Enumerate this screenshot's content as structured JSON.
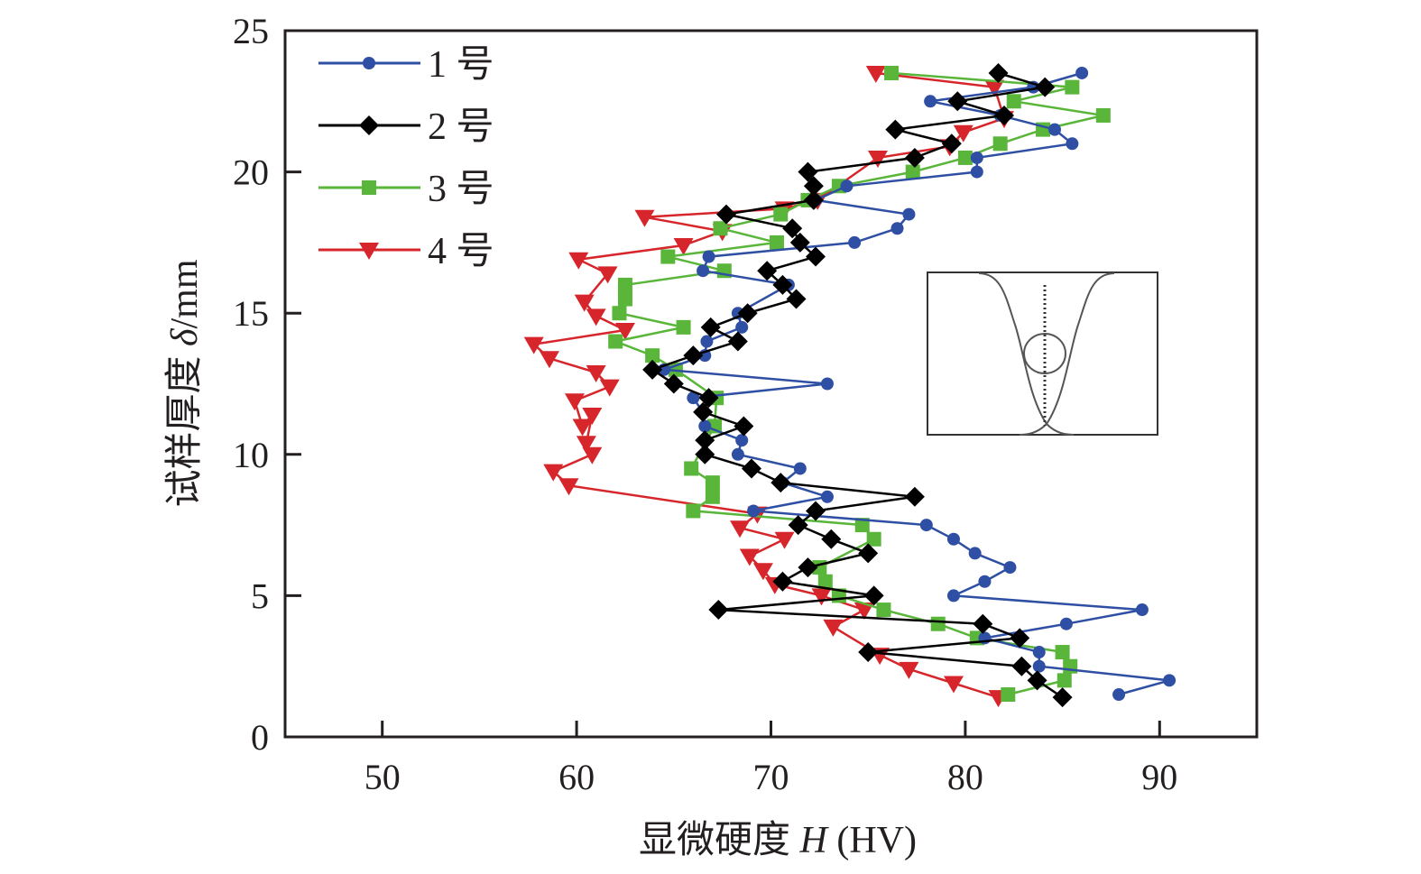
{
  "chart_data": {
    "type": "line",
    "title": "",
    "xlabel": "显微硬度 H (HV)",
    "xlabel_parts": {
      "prefix": "显微硬度 ",
      "italic": "H",
      "suffix": " (HV)"
    },
    "ylabel": "试样厚度 δ/mm",
    "ylabel_parts": {
      "prefix": "试样厚度 ",
      "italic": "δ",
      "suffix": "/mm"
    },
    "xlim": [
      45,
      95
    ],
    "ylim": [
      0,
      25
    ],
    "xticks": [
      50,
      60,
      70,
      80,
      90
    ],
    "yticks": [
      0,
      5,
      10,
      15,
      20,
      25
    ],
    "grid": false,
    "legend_position": "top-left",
    "series": [
      {
        "name": "1 号",
        "color": "#2e4fa3",
        "marker": "circle",
        "points": [
          [
            87.9,
            1.5
          ],
          [
            90.5,
            2.0
          ],
          [
            83.8,
            2.5
          ],
          [
            83.8,
            3.0
          ],
          [
            81.0,
            3.5
          ],
          [
            85.2,
            4.0
          ],
          [
            89.1,
            4.5
          ],
          [
            79.4,
            5.0
          ],
          [
            81.0,
            5.5
          ],
          [
            82.3,
            6.0
          ],
          [
            80.5,
            6.5
          ],
          [
            79.4,
            7.0
          ],
          [
            78.0,
            7.5
          ],
          [
            69.1,
            8.0
          ],
          [
            72.9,
            8.5
          ],
          [
            70.6,
            9.0
          ],
          [
            71.5,
            9.5
          ],
          [
            68.3,
            10.0
          ],
          [
            68.5,
            10.5
          ],
          [
            66.6,
            11.0
          ],
          [
            66.5,
            11.5
          ],
          [
            66.0,
            12.0
          ],
          [
            72.9,
            12.5
          ],
          [
            64.5,
            13.0
          ],
          [
            66.6,
            13.5
          ],
          [
            66.7,
            14.0
          ],
          [
            68.5,
            14.5
          ],
          [
            68.3,
            15.0
          ],
          [
            70.9,
            16.0
          ],
          [
            66.5,
            16.5
          ],
          [
            66.8,
            17.0
          ],
          [
            74.3,
            17.5
          ],
          [
            76.5,
            18.0
          ],
          [
            77.1,
            18.5
          ],
          [
            72.3,
            19.0
          ],
          [
            73.9,
            19.5
          ],
          [
            80.6,
            20.0
          ],
          [
            80.6,
            20.5
          ],
          [
            85.5,
            21.0
          ],
          [
            84.6,
            21.5
          ],
          [
            81.8,
            22.0
          ],
          [
            78.2,
            22.5
          ],
          [
            83.5,
            23.0
          ],
          [
            86.0,
            23.5
          ]
        ]
      },
      {
        "name": "2 号",
        "color": "#000000",
        "marker": "diamond",
        "points": [
          [
            85.0,
            1.4
          ],
          [
            83.7,
            2.0
          ],
          [
            82.9,
            2.5
          ],
          [
            75.0,
            3.0
          ],
          [
            82.8,
            3.5
          ],
          [
            80.9,
            4.0
          ],
          [
            67.3,
            4.5
          ],
          [
            75.3,
            5.0
          ],
          [
            70.6,
            5.5
          ],
          [
            71.9,
            6.0
          ],
          [
            75.0,
            6.5
          ],
          [
            73.1,
            7.0
          ],
          [
            71.4,
            7.5
          ],
          [
            72.3,
            8.0
          ],
          [
            77.4,
            8.5
          ],
          [
            70.5,
            9.0
          ],
          [
            69.0,
            9.5
          ],
          [
            66.6,
            10.0
          ],
          [
            66.6,
            10.5
          ],
          [
            68.6,
            11.0
          ],
          [
            66.5,
            11.5
          ],
          [
            66.8,
            12.0
          ],
          [
            65.0,
            12.5
          ],
          [
            63.9,
            13.0
          ],
          [
            66.0,
            13.5
          ],
          [
            68.3,
            14.0
          ],
          [
            66.9,
            14.5
          ],
          [
            68.8,
            15.0
          ],
          [
            71.3,
            15.5
          ],
          [
            70.6,
            16.0
          ],
          [
            69.8,
            16.5
          ],
          [
            72.3,
            17.0
          ],
          [
            71.5,
            17.5
          ],
          [
            71.1,
            18.0
          ],
          [
            67.7,
            18.5
          ],
          [
            72.2,
            19.0
          ],
          [
            72.2,
            19.5
          ],
          [
            71.9,
            20.0
          ],
          [
            77.4,
            20.5
          ],
          [
            79.3,
            21.0
          ],
          [
            76.4,
            21.5
          ],
          [
            82.0,
            22.0
          ],
          [
            79.6,
            22.5
          ],
          [
            84.1,
            23.0
          ],
          [
            81.7,
            23.5
          ]
        ]
      },
      {
        "name": "3 号",
        "color": "#5ab63a",
        "marker": "square",
        "points": [
          [
            82.2,
            1.5
          ],
          [
            85.1,
            2.0
          ],
          [
            85.4,
            2.5
          ],
          [
            85.0,
            3.0
          ],
          [
            80.6,
            3.5
          ],
          [
            78.6,
            4.0
          ],
          [
            75.8,
            4.5
          ],
          [
            73.5,
            5.0
          ],
          [
            72.8,
            5.5
          ],
          [
            72.5,
            6.0
          ],
          [
            75.3,
            7.0
          ],
          [
            74.7,
            7.5
          ],
          [
            66.0,
            8.0
          ],
          [
            67.0,
            8.5
          ],
          [
            67.0,
            9.0
          ],
          [
            65.9,
            9.5
          ],
          [
            67.1,
            11.0
          ],
          [
            67.2,
            12.0
          ],
          [
            65.1,
            13.0
          ],
          [
            63.9,
            13.5
          ],
          [
            62.0,
            14.0
          ],
          [
            65.5,
            14.5
          ],
          [
            62.2,
            15.0
          ],
          [
            62.5,
            15.5
          ],
          [
            62.5,
            16.0
          ],
          [
            67.6,
            16.5
          ],
          [
            64.7,
            17.0
          ],
          [
            70.3,
            17.5
          ],
          [
            67.4,
            18.0
          ],
          [
            70.5,
            18.5
          ],
          [
            71.9,
            19.0
          ],
          [
            73.5,
            19.5
          ],
          [
            77.3,
            20.0
          ],
          [
            80.0,
            20.5
          ],
          [
            81.8,
            21.0
          ],
          [
            84.0,
            21.5
          ],
          [
            87.1,
            22.0
          ],
          [
            82.5,
            22.5
          ],
          [
            85.5,
            23.0
          ],
          [
            76.2,
            23.5
          ]
        ]
      },
      {
        "name": "4 号",
        "color": "#d7262b",
        "marker": "triangle-down",
        "points": [
          [
            81.7,
            1.4
          ],
          [
            79.4,
            1.9
          ],
          [
            77.1,
            2.4
          ],
          [
            75.6,
            2.9
          ],
          [
            73.2,
            3.9
          ],
          [
            74.8,
            4.5
          ],
          [
            72.6,
            5.0
          ],
          [
            70.2,
            5.4
          ],
          [
            69.6,
            5.9
          ],
          [
            68.9,
            6.4
          ],
          [
            70.7,
            7.0
          ],
          [
            68.4,
            7.4
          ],
          [
            69.3,
            7.9
          ],
          [
            59.6,
            8.9
          ],
          [
            58.8,
            9.4
          ],
          [
            60.8,
            10.0
          ],
          [
            60.5,
            10.4
          ],
          [
            60.8,
            11.4
          ],
          [
            60.3,
            11.0
          ],
          [
            59.9,
            11.9
          ],
          [
            61.7,
            12.4
          ],
          [
            61.0,
            12.9
          ],
          [
            58.6,
            13.4
          ],
          [
            57.8,
            13.9
          ],
          [
            62.5,
            14.4
          ],
          [
            61.0,
            14.9
          ],
          [
            60.4,
            15.4
          ],
          [
            61.6,
            16.4
          ],
          [
            60.1,
            16.9
          ],
          [
            65.5,
            17.4
          ],
          [
            67.5,
            17.9
          ],
          [
            63.5,
            18.4
          ],
          [
            70.7,
            18.7
          ],
          [
            72.4,
            19.0
          ],
          [
            75.5,
            20.5
          ],
          [
            79.2,
            20.9
          ],
          [
            79.9,
            21.4
          ],
          [
            82.0,
            21.9
          ],
          [
            81.5,
            23.0
          ],
          [
            75.4,
            23.5
          ]
        ]
      }
    ],
    "inset": {
      "description": "schematic of specimen cross-section with dotted centerline",
      "curves": "two crossing hourglass-shaped profiles forming a central lens"
    }
  }
}
